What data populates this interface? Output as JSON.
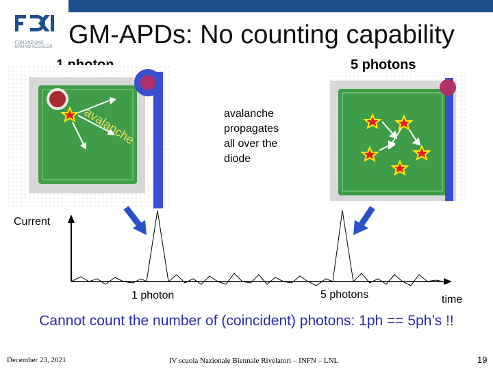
{
  "slide": {
    "title": "GM-APDs: No counting capability",
    "logo_text_line1": "FONDAZIONE",
    "logo_text_line2": "BRUNO KESSLER",
    "label_left": "1 photon",
    "label_right": "5 photons",
    "diode_text": "avalanche",
    "annotation": [
      "avalanche",
      "propagates",
      "all over the",
      "diode"
    ],
    "current_label": "Current",
    "pulse_label_1": "1 photon",
    "pulse_label_2": "5 photons",
    "time_label": "time",
    "caption": "Cannot count the number of (coincident) photons: 1ph == 5ph’s !!",
    "footer_date": "December 23, 2021",
    "footer_center": "IV scuola Nazionale Biennale Rivelatori – INFN – LNL",
    "page_number": "19"
  },
  "colors": {
    "accent_blue": "#1f4e8c",
    "diode_green": "#3f9d4a",
    "diode_border": "#d8d8d8",
    "metal_blue": "#3a4fd0",
    "contact_red": "#c0282f",
    "star_red": "#e02020",
    "star_yellow": "#ffee00",
    "arrow_blue": "#2a52c8",
    "caption_blue": "#2a2aaa"
  }
}
